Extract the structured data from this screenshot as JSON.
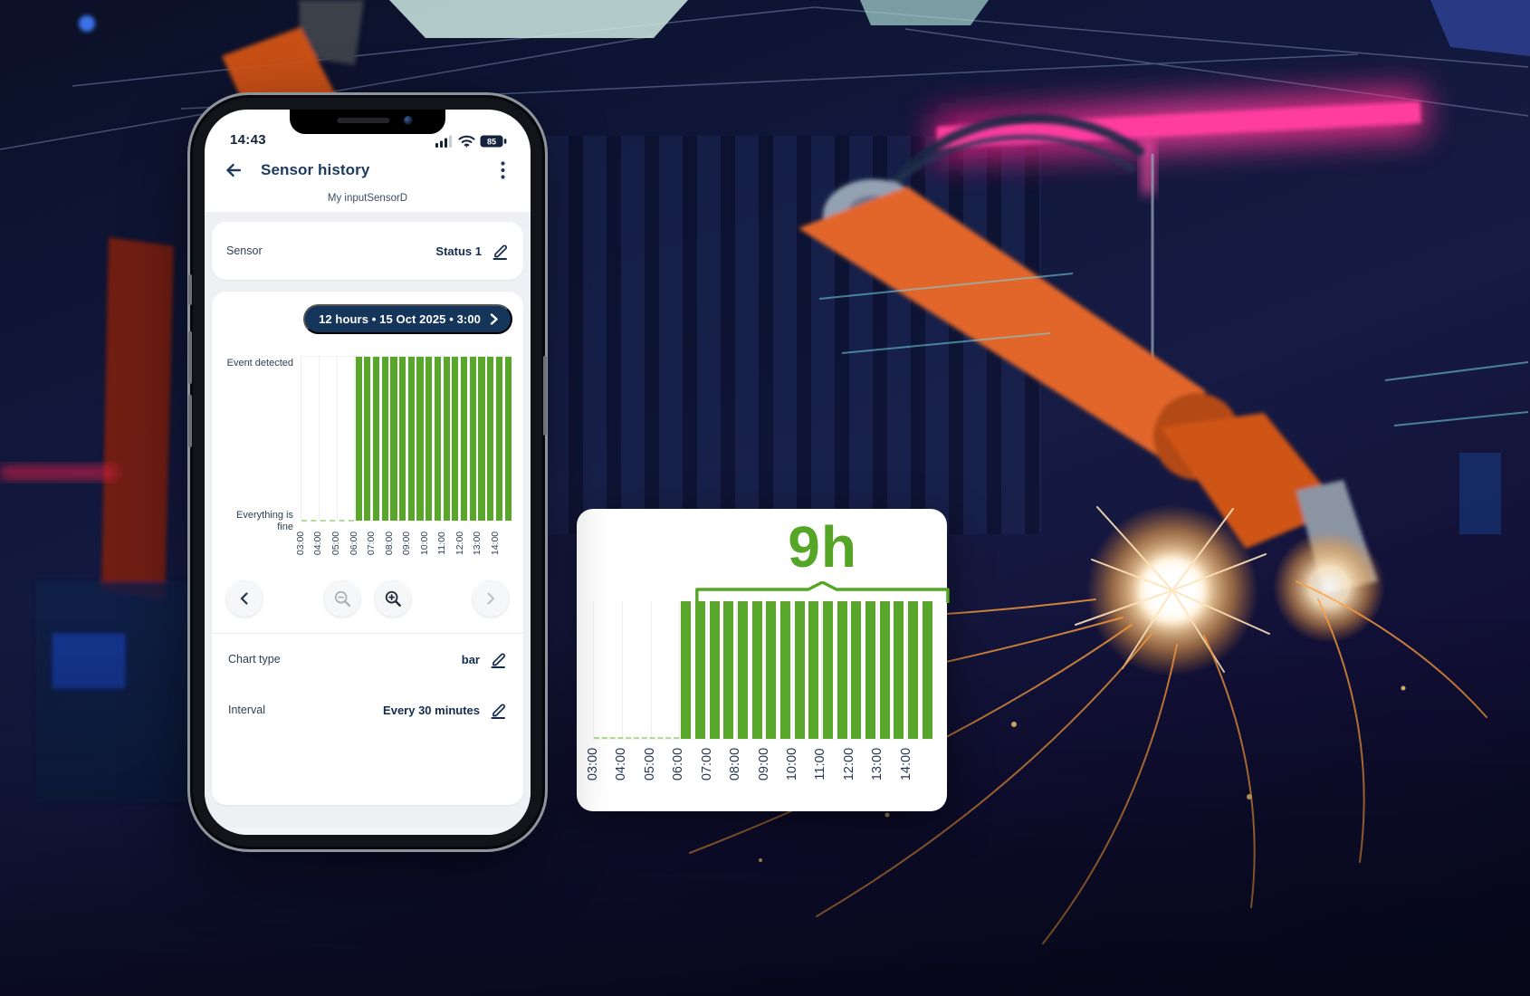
{
  "background": {
    "description": "dark industrial factory hall with orange welding robot arms, magenta neon beam, welding sparks and blue machinery"
  },
  "phone": {
    "status_bar": {
      "time": "14:43",
      "battery_level": "85"
    },
    "header": {
      "title": "Sensor history"
    },
    "device_name": "My inputSensorD",
    "sensor_row": {
      "label": "Sensor",
      "value": "Status 1"
    },
    "range_pill": {
      "label": "12 hours • 15 Oct 2025 • 3:00"
    },
    "settings_rows": [
      {
        "label": "Chart type",
        "value": "bar"
      },
      {
        "label": "Interval",
        "value": "Every 30 minutes"
      }
    ]
  },
  "zoom_card": {
    "duration_label": "9h"
  },
  "icons": {
    "back": "arrow-left",
    "menu": "kebab-vertical-dots",
    "edit": "pencil-with-underline",
    "pill_chevron": "chevron-right",
    "nav_prev": "chevron-left",
    "nav_next": "chevron-right",
    "zoom_out": "magnifier-minus",
    "zoom_in": "magnifier-plus",
    "status": [
      "signal-bars",
      "wifi",
      "battery-85"
    ]
  },
  "colors": {
    "accent_green": "#58a72b",
    "title_navy": "#1b3a5f",
    "pill_navy": "#16355b",
    "value_navy": "#132c4d",
    "magenta_beam": "#ff3d9e",
    "robot_orange": "#e2662a"
  },
  "chart_data": [
    {
      "id": "phone_chart",
      "type": "bar",
      "title": "Sensor history — Status 1 (binary status bars)",
      "ylabel_top": "Event detected",
      "ylabel_bottom": "Everything is fine",
      "interval_minutes": 30,
      "xlim": [
        "03:00",
        "15:00"
      ],
      "x_ticks": [
        "03:00",
        "04:00",
        "05:00",
        "06:00",
        "07:00",
        "08:00",
        "09:00",
        "10:00",
        "11:00",
        "12:00",
        "13:00",
        "14:00"
      ],
      "x": [
        "03:00",
        "03:30",
        "04:00",
        "04:30",
        "05:00",
        "05:30",
        "06:00",
        "06:30",
        "07:00",
        "07:30",
        "08:00",
        "08:30",
        "09:00",
        "09:30",
        "10:00",
        "10:30",
        "11:00",
        "11:30",
        "12:00",
        "12:30",
        "13:00",
        "13:30",
        "14:00",
        "14:30"
      ],
      "values": [
        0,
        0,
        0,
        0,
        0,
        0,
        1,
        1,
        1,
        1,
        1,
        1,
        1,
        1,
        1,
        1,
        1,
        1,
        1,
        1,
        1,
        1,
        1,
        1
      ],
      "value_meaning": {
        "0": "Everything is fine",
        "1": "Event detected"
      },
      "grid": true,
      "legend": "none",
      "bar_color": "#58a72b"
    },
    {
      "id": "zoom_chart",
      "type": "bar",
      "title": "Zoomed detail of same sensor bars",
      "annotation": {
        "text": "9h",
        "from": "06:00",
        "to": "15:00",
        "span_hours": 9
      },
      "interval_minutes": 30,
      "xlim": [
        "03:00",
        "15:00"
      ],
      "x_ticks": [
        "03:00",
        "04:00",
        "05:00",
        "06:00",
        "07:00",
        "08:00",
        "09:00",
        "10:00",
        "11:00",
        "12:00",
        "13:00",
        "14:00"
      ],
      "x": [
        "03:00",
        "03:30",
        "04:00",
        "04:30",
        "05:00",
        "05:30",
        "06:00",
        "06:30",
        "07:00",
        "07:30",
        "08:00",
        "08:30",
        "09:00",
        "09:30",
        "10:00",
        "10:30",
        "11:00",
        "11:30",
        "12:00",
        "12:30",
        "13:00",
        "13:30",
        "14:00",
        "14:30"
      ],
      "values": [
        0,
        0,
        0,
        0,
        0,
        0,
        1,
        1,
        1,
        1,
        1,
        1,
        1,
        1,
        1,
        1,
        1,
        1,
        1,
        1,
        1,
        1,
        1,
        1
      ],
      "value_meaning": {
        "0": "Everything is fine",
        "1": "Event detected"
      },
      "grid": true,
      "legend": "none",
      "bar_color": "#58a72b"
    }
  ]
}
